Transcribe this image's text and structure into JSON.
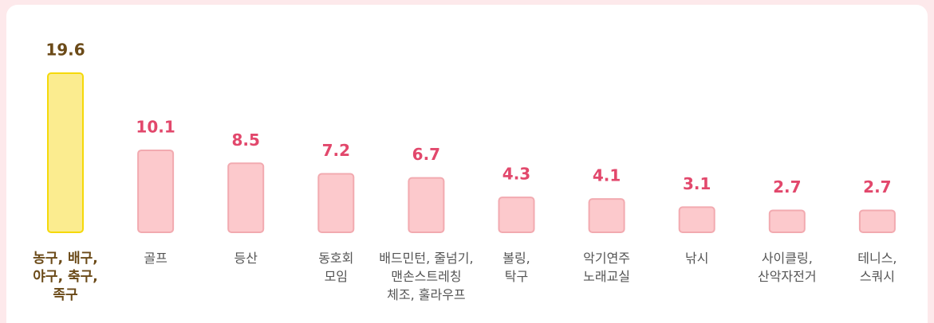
{
  "chart_data": {
    "type": "bar",
    "categories": [
      "농구, 배구,\n야구, 축구,\n족구",
      "골프",
      "등산",
      "동호회\n모임",
      "배드민턴, 줄넘기,\n맨손스트레칭\n체조, 훌라우프",
      "볼링,\n탁구",
      "악기연주\n노래교실",
      "낚시",
      "사이클링,\n산악자전거",
      "테니스,\n스쿼시"
    ],
    "values": [
      19.6,
      10.1,
      8.5,
      7.2,
      6.7,
      4.3,
      4.1,
      3.1,
      2.7,
      2.7
    ],
    "colors": [
      "#fbec8f",
      "#fcc9cc",
      "#fcc9cc",
      "#fcc9cc",
      "#fcc9cc",
      "#fcc9cc",
      "#fcc9cc",
      "#fcc9cc",
      "#fcc9cc",
      "#fcc9cc"
    ]
  }
}
